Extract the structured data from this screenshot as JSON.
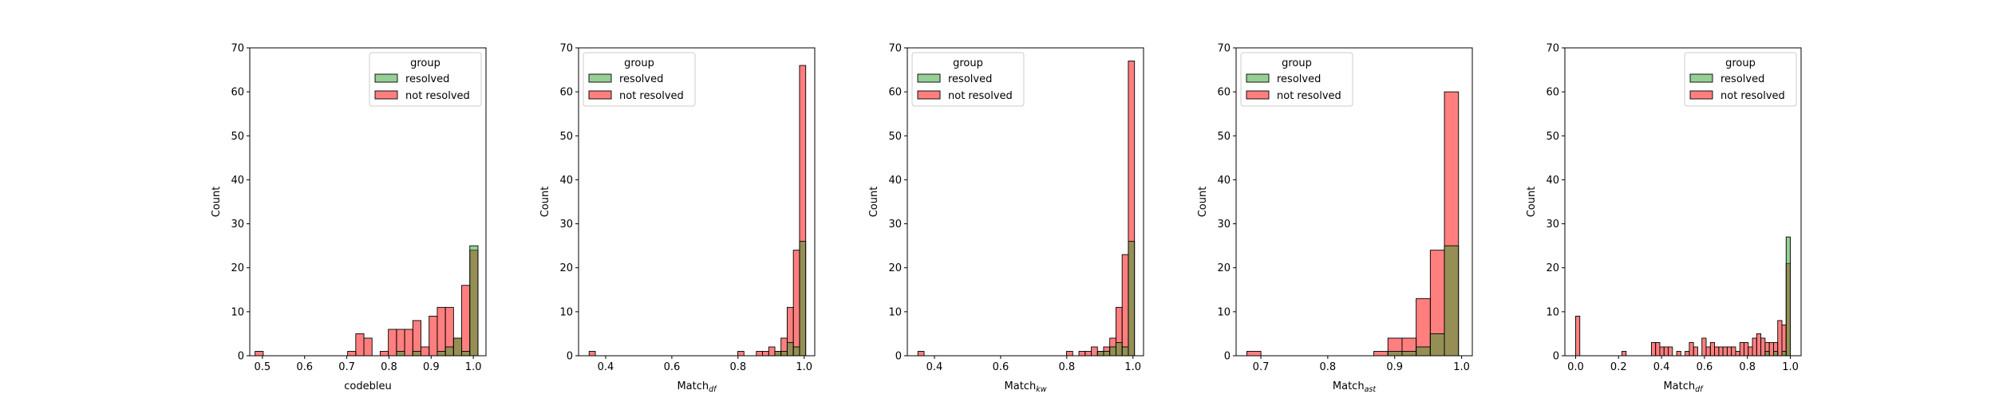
{
  "legend": {
    "title": "group",
    "labels": [
      "resolved",
      "not resolved"
    ]
  },
  "colors": {
    "resolved": "#2ca02c",
    "not_resolved": "#ff0000",
    "overlap": "#808000",
    "edge": "#000000"
  },
  "chart_data": [
    {
      "type": "histogram",
      "xlabel": "codebleu",
      "xlabel_sub": "",
      "ylabel": "Count",
      "xlim": [
        0.47,
        1.03
      ],
      "ylim": [
        0,
        70
      ],
      "xticks": [
        0.5,
        0.6,
        0.7,
        0.8,
        0.9,
        1.0
      ],
      "xtick_labels": [
        "0.5",
        "0.6",
        "0.7",
        "0.8",
        "0.9",
        "1.0"
      ],
      "yticks": [
        0,
        10,
        20,
        30,
        40,
        50,
        60,
        70
      ],
      "legend_position": "upper right",
      "bin_width": 0.01931,
      "bin_start": 0.4826,
      "series": [
        {
          "name": "resolved",
          "bins": [
            [
              0.8179,
              1
            ],
            [
              0.8565,
              1
            ],
            [
              0.9145,
              1
            ],
            [
              0.9338,
              2
            ],
            [
              0.9531,
              4
            ],
            [
              0.9724,
              1
            ],
            [
              0.9917,
              25
            ]
          ]
        },
        {
          "name": "not resolved",
          "bins": [
            [
              0.4826,
              1
            ],
            [
              0.702,
              1
            ],
            [
              0.7213,
              5
            ],
            [
              0.7406,
              4
            ],
            [
              0.7792,
              1
            ],
            [
              0.7985,
              6
            ],
            [
              0.8179,
              6
            ],
            [
              0.8372,
              6
            ],
            [
              0.8565,
              8
            ],
            [
              0.8758,
              2
            ],
            [
              0.8951,
              9
            ],
            [
              0.9145,
              11
            ],
            [
              0.9338,
              11
            ],
            [
              0.9531,
              4
            ],
            [
              0.9724,
              16
            ],
            [
              0.9917,
              24
            ]
          ]
        }
      ]
    },
    {
      "type": "histogram",
      "xlabel": "Match",
      "xlabel_sub": "df",
      "ylabel": "Count",
      "xlim": [
        0.318,
        1.032
      ],
      "ylim": [
        0,
        70
      ],
      "xticks": [
        0.4,
        0.6,
        0.8,
        1.0
      ],
      "xtick_labels": [
        "0.4",
        "0.6",
        "0.8",
        "1.0"
      ],
      "yticks": [
        0,
        10,
        20,
        30,
        40,
        50,
        60,
        70
      ],
      "legend_position": "upper left",
      "bin_width": 0.0187,
      "bin_start": 0.35,
      "series": [
        {
          "name": "resolved",
          "bins": [
            [
              0.9112,
              1
            ],
            [
              0.9299,
              1
            ],
            [
              0.9486,
              3
            ],
            [
              0.9673,
              2
            ],
            [
              0.986,
              26
            ]
          ]
        },
        {
          "name": "not resolved",
          "bins": [
            [
              0.35,
              1
            ],
            [
              0.7993,
              1
            ],
            [
              0.8554,
              1
            ],
            [
              0.8741,
              1
            ],
            [
              0.8928,
              2
            ],
            [
              0.9112,
              1
            ],
            [
              0.9299,
              4
            ],
            [
              0.9486,
              11
            ],
            [
              0.9673,
              24
            ],
            [
              0.986,
              66
            ]
          ]
        }
      ]
    },
    {
      "type": "histogram",
      "xlabel": "Match",
      "xlabel_sub": "kw",
      "ylabel": "Count",
      "xlim": [
        0.318,
        1.032
      ],
      "ylim": [
        0,
        70
      ],
      "xticks": [
        0.4,
        0.6,
        0.8,
        1.0
      ],
      "xtick_labels": [
        "0.4",
        "0.6",
        "0.8",
        "1.0"
      ],
      "yticks": [
        0,
        10,
        20,
        30,
        40,
        50,
        60,
        70
      ],
      "legend_position": "upper left",
      "bin_width": 0.0187,
      "bin_start": 0.35,
      "series": [
        {
          "name": "resolved",
          "bins": [
            [
              0.8928,
              1
            ],
            [
              0.9112,
              1
            ],
            [
              0.9299,
              2
            ],
            [
              0.9486,
              3
            ],
            [
              0.9673,
              2
            ],
            [
              0.986,
              26
            ]
          ]
        },
        {
          "name": "not resolved",
          "bins": [
            [
              0.35,
              1
            ],
            [
              0.7993,
              1
            ],
            [
              0.8367,
              1
            ],
            [
              0.8554,
              1
            ],
            [
              0.8741,
              2
            ],
            [
              0.8928,
              1
            ],
            [
              0.9112,
              2
            ],
            [
              0.9299,
              4
            ],
            [
              0.9486,
              11
            ],
            [
              0.9673,
              23
            ],
            [
              0.986,
              67
            ]
          ]
        }
      ]
    },
    {
      "type": "histogram",
      "xlabel": "Match",
      "xlabel_sub": "ast",
      "ylabel": "Count",
      "xlim": [
        0.663,
        1.016
      ],
      "ylim": [
        0,
        70
      ],
      "xticks": [
        0.7,
        0.8,
        0.9,
        1.0
      ],
      "xtick_labels": [
        "0.7",
        "0.8",
        "0.9",
        "1.0"
      ],
      "yticks": [
        0,
        10,
        20,
        30,
        40,
        50,
        60,
        70
      ],
      "legend_position": "upper left",
      "bin_width": 0.0211,
      "bin_start": 0.679,
      "series": [
        {
          "name": "resolved",
          "bins": [
            [
              0.8899,
              1
            ],
            [
              0.911,
              1
            ],
            [
              0.9321,
              2
            ],
            [
              0.9532,
              5
            ],
            [
              0.9743,
              25
            ]
          ]
        },
        {
          "name": "not resolved",
          "bins": [
            [
              0.679,
              1
            ],
            [
              0.8688,
              1
            ],
            [
              0.8899,
              4
            ],
            [
              0.911,
              4
            ],
            [
              0.9321,
              13
            ],
            [
              0.9532,
              24
            ],
            [
              0.9743,
              60
            ]
          ]
        }
      ]
    },
    {
      "type": "histogram",
      "xlabel": "Match",
      "xlabel_sub": "df",
      "ylabel": "Count",
      "xlim": [
        -0.05,
        1.05
      ],
      "ylim": [
        0,
        70
      ],
      "xticks": [
        0.0,
        0.2,
        0.4,
        0.6,
        0.8,
        1.0
      ],
      "xtick_labels": [
        "0.0",
        "0.2",
        "0.4",
        "0.6",
        "0.8",
        "1.0"
      ],
      "yticks": [
        0,
        10,
        20,
        30,
        40,
        50,
        60,
        70
      ],
      "legend_position": "upper right",
      "bin_width": 0.0196,
      "bin_start": 0.0,
      "series": [
        {
          "name": "resolved",
          "bins": [
            [
              0.8824,
              1
            ],
            [
              0.9216,
              1
            ],
            [
              0.9608,
              1
            ],
            [
              0.9804,
              27
            ]
          ]
        },
        {
          "name": "not resolved",
          "bins": [
            [
              0.0,
              9
            ],
            [
              0.2157,
              1
            ],
            [
              0.3529,
              3
            ],
            [
              0.3725,
              3
            ],
            [
              0.3922,
              2
            ],
            [
              0.4118,
              2
            ],
            [
              0.4314,
              2
            ],
            [
              0.4706,
              1
            ],
            [
              0.5098,
              1
            ],
            [
              0.5294,
              3
            ],
            [
              0.549,
              2
            ],
            [
              0.5882,
              4
            ],
            [
              0.6078,
              2
            ],
            [
              0.6275,
              3
            ],
            [
              0.6471,
              2
            ],
            [
              0.6667,
              2
            ],
            [
              0.6863,
              2
            ],
            [
              0.7059,
              2
            ],
            [
              0.7255,
              2
            ],
            [
              0.7451,
              1
            ],
            [
              0.7647,
              3
            ],
            [
              0.7843,
              3
            ],
            [
              0.8039,
              2
            ],
            [
              0.8235,
              4
            ],
            [
              0.8431,
              5
            ],
            [
              0.8627,
              4
            ],
            [
              0.8824,
              3
            ],
            [
              0.902,
              3
            ],
            [
              0.9216,
              3
            ],
            [
              0.9412,
              8
            ],
            [
              0.9608,
              7
            ],
            [
              0.9804,
              21
            ]
          ]
        }
      ]
    }
  ]
}
